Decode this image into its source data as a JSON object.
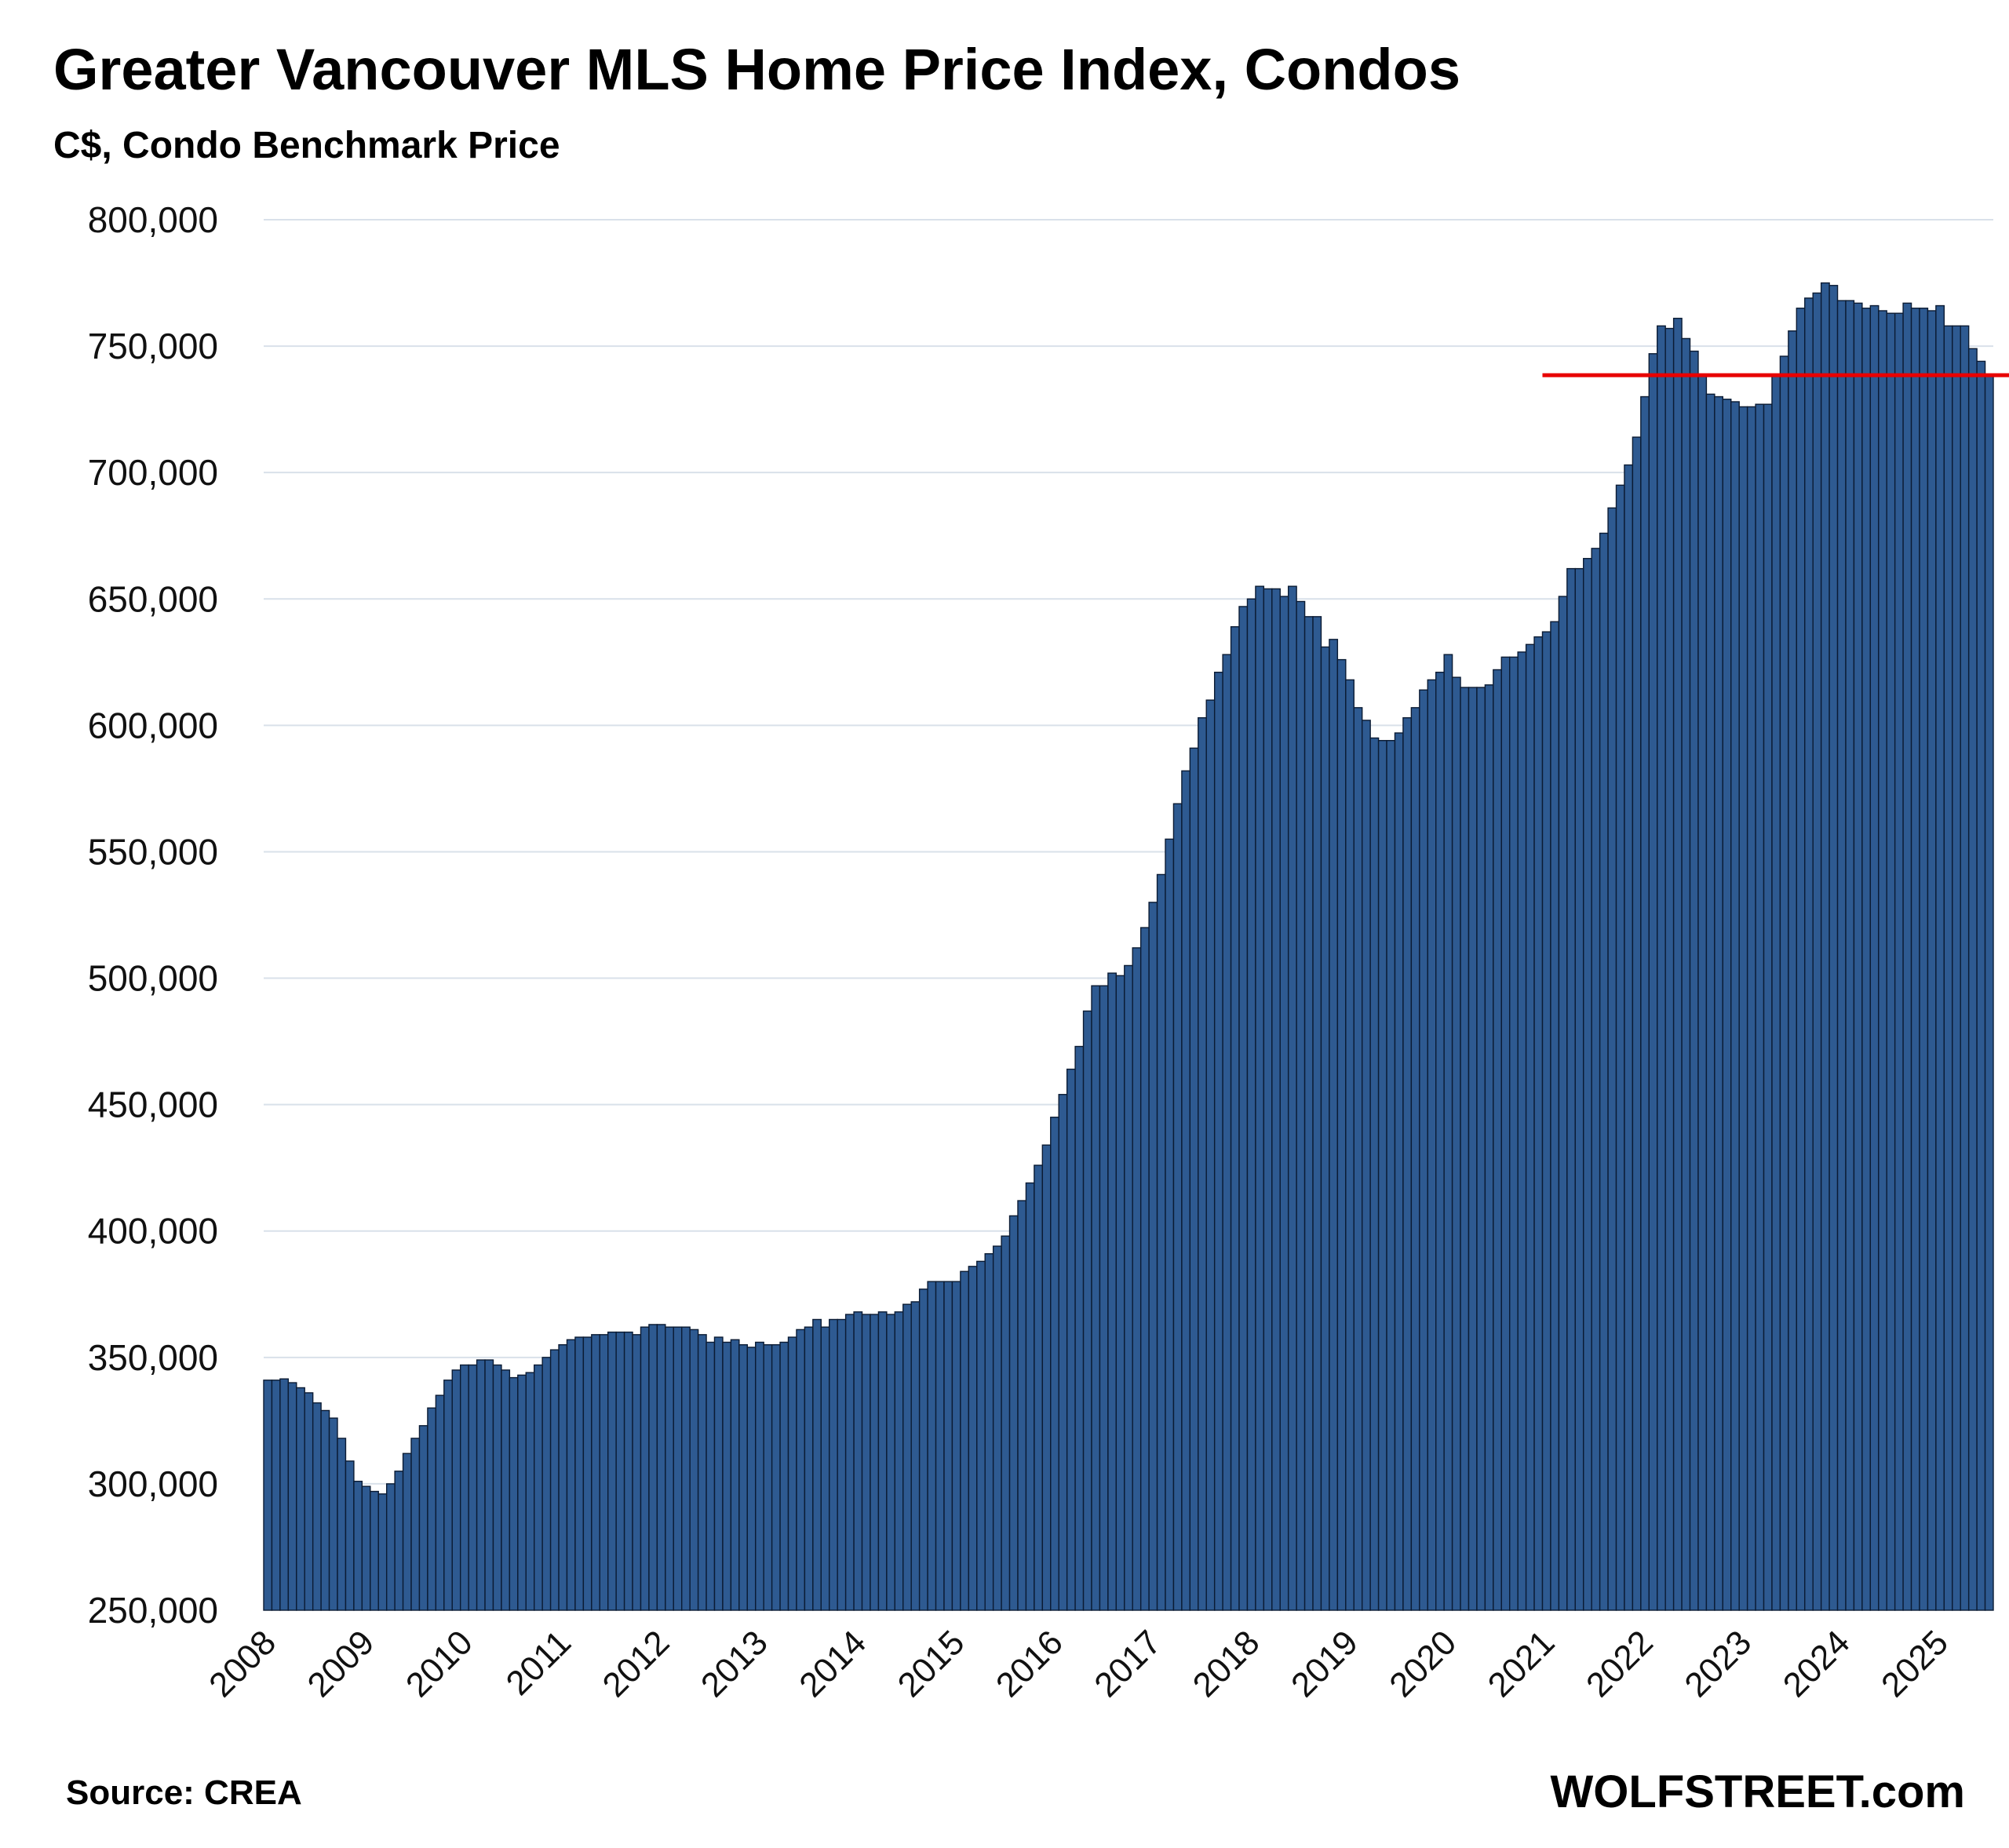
{
  "header": {
    "title": "Greater Vancouver MLS Home Price Index, Condos",
    "subtitle": "C$, Condo Benchmark Price"
  },
  "footer": {
    "source": "Source: CREA",
    "brand": "WOLFSTREET.com"
  },
  "colors": {
    "bar_fill": "#2E5A91",
    "bar_stroke": "#0B1B33",
    "reference_line": "#E80000",
    "gridline": "#D9E1EA"
  },
  "chart_data": {
    "type": "bar",
    "title": "Greater Vancouver MLS Home Price Index, Condos",
    "subtitle": "C$, Condo Benchmark Price",
    "xlabel": "",
    "ylabel": "",
    "ylim": [
      250000,
      800000
    ],
    "yticks": [
      250000,
      300000,
      350000,
      400000,
      450000,
      500000,
      550000,
      600000,
      650000,
      700000,
      750000,
      800000
    ],
    "ytick_labels": [
      "250,000",
      "300,000",
      "350,000",
      "400,000",
      "450,000",
      "500,000",
      "550,000",
      "600,000",
      "650,000",
      "700,000",
      "750,000",
      "800,000"
    ],
    "xtick_labels": [
      "2008",
      "2009",
      "2010",
      "2011",
      "2012",
      "2013",
      "2014",
      "2015",
      "2016",
      "2017",
      "2018",
      "2019",
      "2020",
      "2021",
      "2022",
      "2023",
      "2024",
      "2025"
    ],
    "grid": "horizontal",
    "legend": "none",
    "series": [
      {
        "values": [
          341000,
          341000,
          341500,
          340000,
          338000,
          336000,
          332000,
          329000,
          326000,
          318000,
          309000,
          301000,
          299000,
          297000,
          296000,
          300000,
          305000,
          312000,
          318000,
          323000,
          330000,
          335000,
          341000,
          345000,
          347000,
          347000,
          349000,
          349000,
          347000,
          345000,
          342000,
          343000,
          344000,
          347000,
          350000,
          353000,
          355000,
          357000,
          358000,
          358000,
          359000,
          359000,
          360000,
          360000,
          360000,
          359000,
          362000,
          363000,
          363000,
          362000,
          362000,
          362000,
          361000,
          359000,
          356000,
          358000,
          356000,
          357000,
          355000,
          354000,
          356000,
          355000,
          355000,
          356000,
          358000,
          361000,
          362000,
          365000,
          362000,
          365000,
          365000,
          367000,
          368000,
          367000,
          367000,
          368000,
          367000,
          368000,
          371000,
          372000,
          377000,
          380000,
          380000,
          380000,
          380000,
          384000,
          386000,
          388000,
          391000,
          394000,
          398000,
          406000,
          412000,
          419000,
          426000,
          434000,
          445000,
          454000,
          464000,
          473000,
          487000,
          497000,
          497000,
          502000,
          501000,
          505000,
          512000,
          520000,
          530000,
          541000,
          555000,
          569000,
          582000,
          591000,
          603000,
          610000,
          621000,
          628000,
          639000,
          647000,
          650000,
          655000,
          654000,
          654000,
          651000,
          655000,
          649000,
          643000,
          643000,
          631000,
          634000,
          626000,
          618000,
          607000,
          602000,
          595000,
          594000,
          594000,
          597000,
          603000,
          607000,
          614000,
          618000,
          621000,
          628000,
          619000,
          615000,
          615000,
          615000,
          616000,
          622000,
          627000,
          627000,
          629000,
          632000,
          635000,
          637000,
          641000,
          651000,
          662000,
          662000,
          666000,
          670000,
          676000,
          686000,
          695000,
          703000,
          714000,
          730000,
          747000,
          758000,
          757000,
          761000,
          753000,
          748000,
          738000,
          731000,
          730000,
          729000,
          728000,
          726000,
          726000,
          727000,
          727000,
          738000,
          746000,
          756000,
          765000,
          769000,
          771000,
          775000,
          774000,
          768000,
          768000,
          767000,
          765000,
          766000,
          764000,
          763000,
          763000,
          767000,
          765000,
          765000,
          764000,
          766000,
          758000,
          758000,
          758000,
          749000,
          744000,
          738000
        ]
      }
    ],
    "reference_line": {
      "value": 738500,
      "start_label": "2021"
    },
    "x_start": "2008-01",
    "x_end": "2025-09",
    "frequency": "monthly"
  }
}
